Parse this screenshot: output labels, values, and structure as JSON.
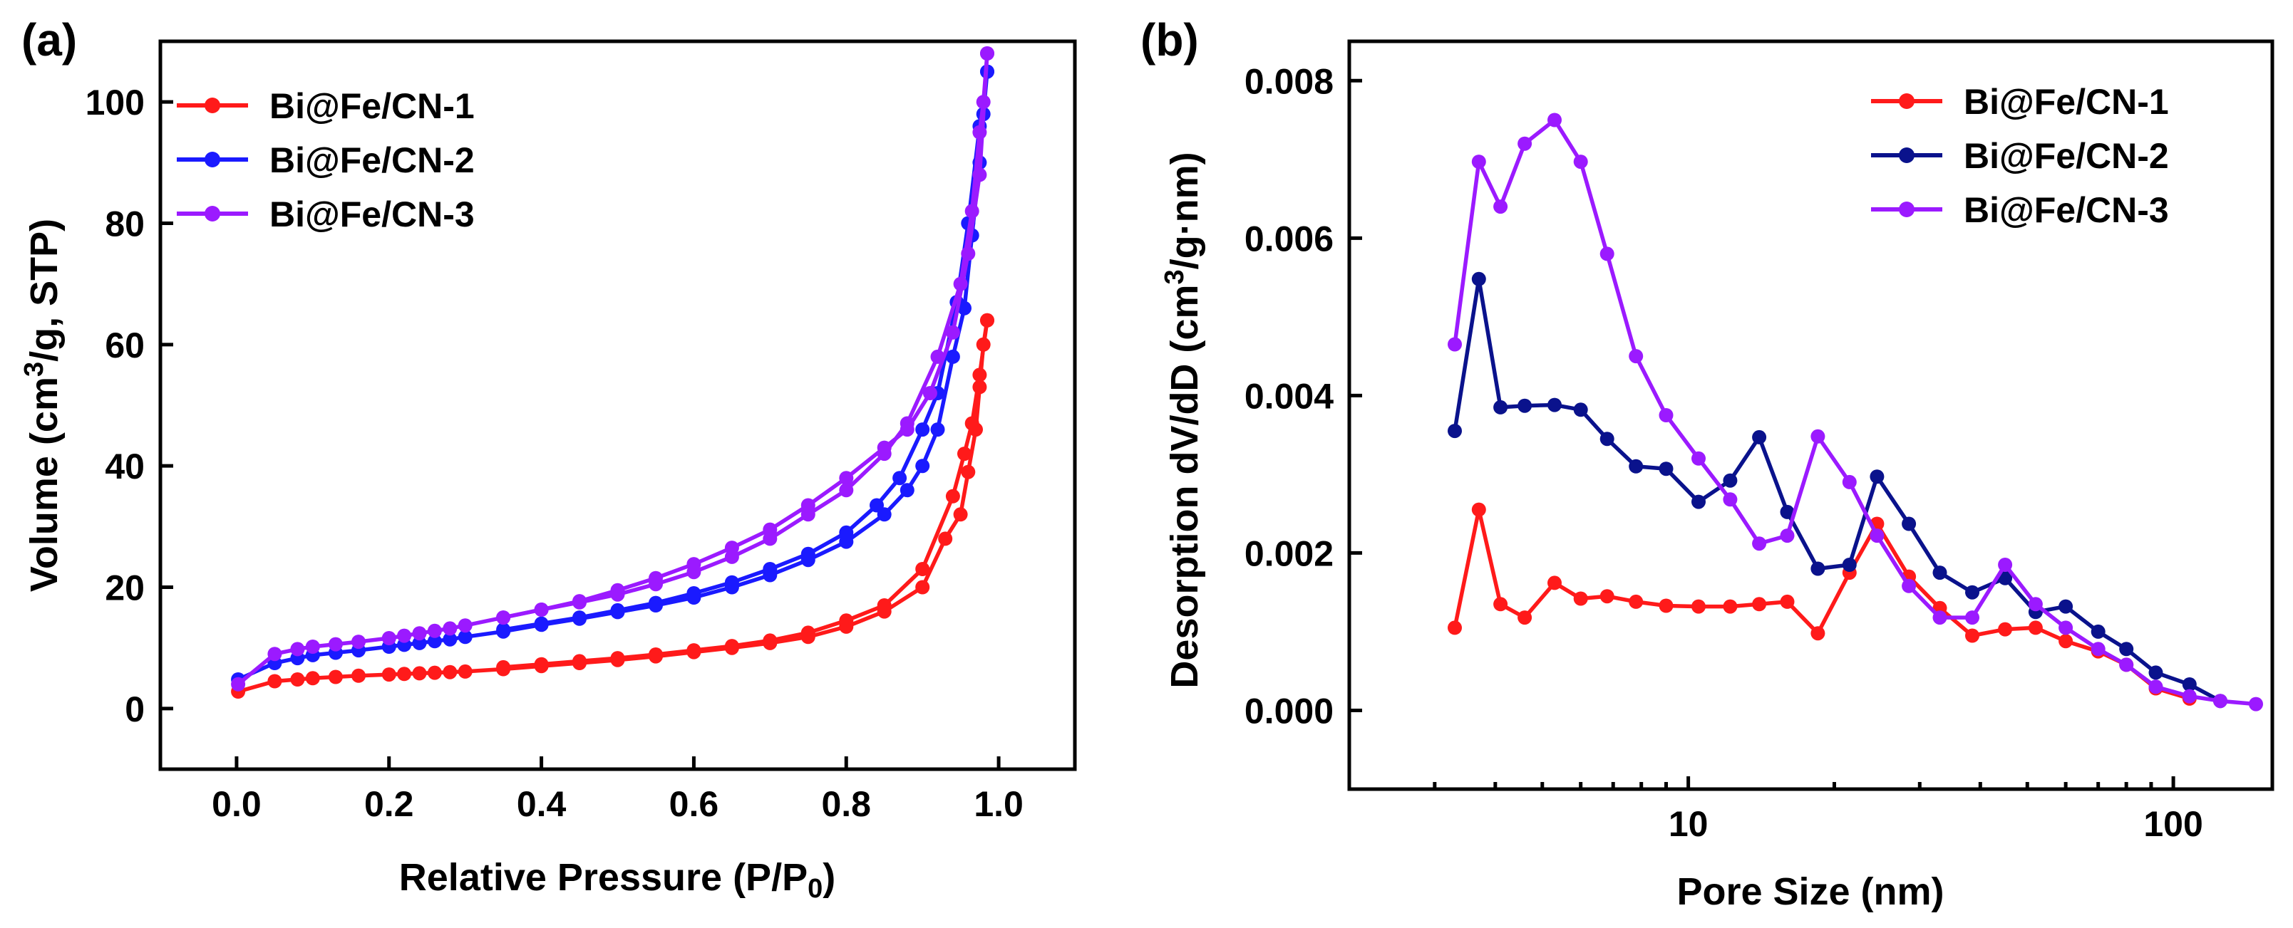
{
  "chart_data": [
    {
      "panel_label": "(a)",
      "type": "line",
      "xlabel_main": "Relative Pressure (P/P",
      "xlabel_sub": "0",
      "xlabel_end": ")",
      "ylabel_pre": "Volume (cm",
      "ylabel_sup": "3",
      "ylabel_post": "/g, STP)",
      "xlim": [
        -0.1,
        1.1
      ],
      "ylim": [
        -10,
        110
      ],
      "xticks": [
        0.0,
        0.2,
        0.4,
        0.6,
        0.8,
        1.0
      ],
      "xtick_labels": [
        "0.0",
        "0.2",
        "0.4",
        "0.6",
        "0.8",
        "1.0"
      ],
      "yticks": [
        0,
        20,
        40,
        60,
        80,
        100
      ],
      "ytick_labels": [
        "0",
        "20",
        "40",
        "60",
        "80",
        "100"
      ],
      "legend_position": "top-left",
      "series": [
        {
          "name": "Bi@Fe/CN-1",
          "color": "#ff1a1a",
          "adsorption": [
            [
              0.002,
              2.8
            ],
            [
              0.05,
              4.5
            ],
            [
              0.08,
              4.8
            ],
            [
              0.1,
              5.0
            ],
            [
              0.13,
              5.2
            ],
            [
              0.16,
              5.4
            ],
            [
              0.2,
              5.6
            ],
            [
              0.22,
              5.7
            ],
            [
              0.24,
              5.8
            ],
            [
              0.26,
              5.9
            ],
            [
              0.28,
              6.0
            ],
            [
              0.3,
              6.1
            ],
            [
              0.35,
              6.5
            ],
            [
              0.4,
              7.0
            ],
            [
              0.45,
              7.5
            ],
            [
              0.5,
              8.0
            ],
            [
              0.55,
              8.6
            ],
            [
              0.6,
              9.3
            ],
            [
              0.65,
              10.0
            ],
            [
              0.7,
              10.8
            ],
            [
              0.75,
              11.8
            ],
            [
              0.8,
              13.5
            ],
            [
              0.85,
              16.0
            ],
            [
              0.9,
              20.0
            ],
            [
              0.93,
              28.0
            ],
            [
              0.95,
              32.0
            ],
            [
              0.96,
              39.0
            ],
            [
              0.97,
              46.0
            ],
            [
              0.975,
              53.0
            ],
            [
              0.98,
              60.0
            ],
            [
              0.985,
              64.0
            ]
          ],
          "desorption": [
            [
              0.985,
              64.0
            ],
            [
              0.975,
              55.0
            ],
            [
              0.965,
              47.0
            ],
            [
              0.955,
              42.0
            ],
            [
              0.94,
              35.0
            ],
            [
              0.9,
              23.0
            ],
            [
              0.85,
              17.0
            ],
            [
              0.8,
              14.5
            ],
            [
              0.75,
              12.5
            ],
            [
              0.7,
              11.2
            ],
            [
              0.65,
              10.3
            ],
            [
              0.6,
              9.6
            ],
            [
              0.55,
              8.9
            ],
            [
              0.5,
              8.3
            ],
            [
              0.45,
              7.8
            ],
            [
              0.4,
              7.3
            ],
            [
              0.35,
              6.8
            ]
          ]
        },
        {
          "name": "Bi@Fe/CN-2",
          "color": "#1a1aff",
          "adsorption": [
            [
              0.002,
              4.8
            ],
            [
              0.05,
              7.5
            ],
            [
              0.08,
              8.3
            ],
            [
              0.1,
              8.8
            ],
            [
              0.13,
              9.2
            ],
            [
              0.16,
              9.6
            ],
            [
              0.2,
              10.2
            ],
            [
              0.22,
              10.5
            ],
            [
              0.24,
              10.8
            ],
            [
              0.26,
              11.1
            ],
            [
              0.28,
              11.4
            ],
            [
              0.3,
              11.8
            ],
            [
              0.35,
              12.7
            ],
            [
              0.4,
              13.8
            ],
            [
              0.45,
              14.8
            ],
            [
              0.5,
              15.9
            ],
            [
              0.55,
              17.0
            ],
            [
              0.6,
              18.3
            ],
            [
              0.65,
              20.0
            ],
            [
              0.7,
              22.0
            ],
            [
              0.75,
              24.5
            ],
            [
              0.8,
              27.5
            ],
            [
              0.85,
              32.0
            ],
            [
              0.88,
              36.0
            ],
            [
              0.9,
              40.0
            ],
            [
              0.92,
              46.0
            ],
            [
              0.94,
              58.0
            ],
            [
              0.955,
              66.0
            ],
            [
              0.965,
              78.0
            ],
            [
              0.975,
              90.0
            ],
            [
              0.98,
              98.0
            ],
            [
              0.985,
              105.0
            ]
          ],
          "desorption": [
            [
              0.985,
              105.0
            ],
            [
              0.975,
              96.0
            ],
            [
              0.96,
              80.0
            ],
            [
              0.945,
              67.0
            ],
            [
              0.92,
              52.0
            ],
            [
              0.9,
              46.0
            ],
            [
              0.87,
              38.0
            ],
            [
              0.84,
              33.5
            ],
            [
              0.8,
              29.0
            ],
            [
              0.75,
              25.5
            ],
            [
              0.7,
              23.0
            ],
            [
              0.65,
              20.8
            ],
            [
              0.6,
              19.0
            ],
            [
              0.55,
              17.4
            ],
            [
              0.5,
              16.2
            ],
            [
              0.45,
              15.0
            ],
            [
              0.4,
              14.0
            ],
            [
              0.35,
              13.0
            ]
          ]
        },
        {
          "name": "Bi@Fe/CN-3",
          "color": "#9b1aff",
          "adsorption": [
            [
              0.002,
              4.0
            ],
            [
              0.05,
              9.0
            ],
            [
              0.08,
              9.8
            ],
            [
              0.1,
              10.2
            ],
            [
              0.13,
              10.6
            ],
            [
              0.16,
              11.0
            ],
            [
              0.2,
              11.6
            ],
            [
              0.22,
              12.0
            ],
            [
              0.24,
              12.4
            ],
            [
              0.26,
              12.8
            ],
            [
              0.28,
              13.2
            ],
            [
              0.3,
              13.7
            ],
            [
              0.35,
              15.0
            ],
            [
              0.4,
              16.3
            ],
            [
              0.45,
              17.5
            ],
            [
              0.5,
              18.8
            ],
            [
              0.55,
              20.5
            ],
            [
              0.6,
              22.5
            ],
            [
              0.65,
              25.0
            ],
            [
              0.7,
              28.0
            ],
            [
              0.75,
              32.0
            ],
            [
              0.8,
              36.0
            ],
            [
              0.85,
              42.0
            ],
            [
              0.88,
              47.0
            ],
            [
              0.92,
              58.0
            ],
            [
              0.95,
              70.0
            ],
            [
              0.965,
              82.0
            ],
            [
              0.975,
              95.0
            ],
            [
              0.98,
              100.0
            ],
            [
              0.985,
              108.0
            ]
          ],
          "desorption": [
            [
              0.985,
              108.0
            ],
            [
              0.975,
              88.0
            ],
            [
              0.96,
              75.0
            ],
            [
              0.94,
              62.0
            ],
            [
              0.91,
              52.0
            ],
            [
              0.88,
              46.0
            ],
            [
              0.85,
              43.0
            ],
            [
              0.8,
              38.0
            ],
            [
              0.75,
              33.5
            ],
            [
              0.7,
              29.5
            ],
            [
              0.65,
              26.5
            ],
            [
              0.6,
              23.8
            ],
            [
              0.55,
              21.5
            ],
            [
              0.5,
              19.5
            ],
            [
              0.45,
              17.7
            ],
            [
              0.4,
              16.3
            ],
            [
              0.35,
              15.0
            ]
          ]
        }
      ]
    },
    {
      "panel_label": "(b)",
      "type": "line",
      "xlabel": "Pore Size (nm)",
      "ylabel_pre": "Desorption dV/dD (cm",
      "ylabel_sup": "3",
      "ylabel_post": "/g·nm)",
      "xscale": "log",
      "xlim": [
        2.0,
        160
      ],
      "ylim": [
        -0.001,
        0.0085
      ],
      "xticks": [
        10,
        100
      ],
      "xtick_labels": [
        "10",
        "100"
      ],
      "yticks": [
        0.0,
        0.002,
        0.004,
        0.006,
        0.008
      ],
      "ytick_labels": [
        "0.000",
        "0.002",
        "0.004",
        "0.006",
        "0.008"
      ],
      "legend_position": "top-right",
      "series": [
        {
          "name": "Bi@Fe/CN-1",
          "color": "#ff1a1a",
          "points": [
            [
              3.3,
              0.00105
            ],
            [
              3.7,
              0.00255
            ],
            [
              4.1,
              0.00135
            ],
            [
              4.6,
              0.00118
            ],
            [
              5.3,
              0.00162
            ],
            [
              6.0,
              0.00142
            ],
            [
              6.8,
              0.00145
            ],
            [
              7.8,
              0.00138
            ],
            [
              9.0,
              0.00133
            ],
            [
              10.5,
              0.00132
            ],
            [
              12.2,
              0.00132
            ],
            [
              14.0,
              0.00135
            ],
            [
              16.0,
              0.00138
            ],
            [
              18.5,
              0.00098
            ],
            [
              21.5,
              0.00175
            ],
            [
              24.5,
              0.00237
            ],
            [
              28.5,
              0.0017
            ],
            [
              33.0,
              0.0013
            ],
            [
              38.5,
              0.00095
            ],
            [
              45.0,
              0.00103
            ],
            [
              52.0,
              0.00105
            ],
            [
              60.0,
              0.00088
            ],
            [
              70.0,
              0.00075
            ],
            [
              80.0,
              0.00058
            ],
            [
              92.0,
              0.00028
            ],
            [
              108.0,
              0.00015
            ]
          ]
        },
        {
          "name": "Bi@Fe/CN-2",
          "color": "#0a128c",
          "points": [
            [
              3.3,
              0.00355
            ],
            [
              3.7,
              0.00548
            ],
            [
              4.1,
              0.00385
            ],
            [
              4.6,
              0.00387
            ],
            [
              5.3,
              0.00388
            ],
            [
              6.0,
              0.00382
            ],
            [
              6.8,
              0.00345
            ],
            [
              7.8,
              0.0031
            ],
            [
              9.0,
              0.00307
            ],
            [
              10.5,
              0.00265
            ],
            [
              12.2,
              0.00292
            ],
            [
              14.0,
              0.00347
            ],
            [
              16.0,
              0.00252
            ],
            [
              18.5,
              0.0018
            ],
            [
              21.5,
              0.00185
            ],
            [
              24.5,
              0.00297
            ],
            [
              28.5,
              0.00237
            ],
            [
              33.0,
              0.00175
            ],
            [
              38.5,
              0.0015
            ],
            [
              45.0,
              0.00168
            ],
            [
              52.0,
              0.00125
            ],
            [
              60.0,
              0.00132
            ],
            [
              70.0,
              0.001
            ],
            [
              80.0,
              0.00078
            ],
            [
              92.0,
              0.00048
            ],
            [
              108.0,
              0.00033
            ],
            [
              125.0,
              0.00012
            ]
          ]
        },
        {
          "name": "Bi@Fe/CN-3",
          "color": "#9b1aff",
          "points": [
            [
              3.3,
              0.00465
            ],
            [
              3.7,
              0.00697
            ],
            [
              4.1,
              0.0064
            ],
            [
              4.6,
              0.0072
            ],
            [
              5.3,
              0.0075
            ],
            [
              6.0,
              0.00697
            ],
            [
              6.8,
              0.0058
            ],
            [
              7.8,
              0.0045
            ],
            [
              9.0,
              0.00375
            ],
            [
              10.5,
              0.0032
            ],
            [
              12.2,
              0.00268
            ],
            [
              14.0,
              0.00212
            ],
            [
              16.0,
              0.00222
            ],
            [
              18.5,
              0.00348
            ],
            [
              21.5,
              0.0029
            ],
            [
              24.5,
              0.00222
            ],
            [
              28.5,
              0.00158
            ],
            [
              33.0,
              0.00118
            ],
            [
              38.5,
              0.00118
            ],
            [
              45.0,
              0.00185
            ],
            [
              52.0,
              0.00135
            ],
            [
              60.0,
              0.00105
            ],
            [
              70.0,
              0.00078
            ],
            [
              80.0,
              0.00058
            ],
            [
              92.0,
              0.0003
            ],
            [
              108.0,
              0.00018
            ],
            [
              125.0,
              0.00012
            ],
            [
              148.0,
              8e-05
            ]
          ]
        }
      ]
    }
  ]
}
